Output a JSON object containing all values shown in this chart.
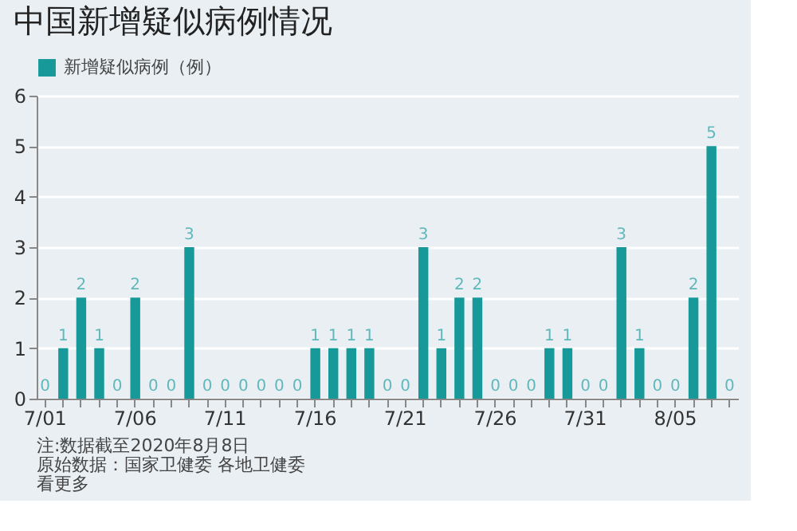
{
  "chart_data": {
    "type": "bar",
    "title": "中国新增疑似病例情况",
    "categories": [
      "7/01",
      null,
      null,
      null,
      null,
      "7/06",
      null,
      null,
      null,
      null,
      "7/11",
      null,
      null,
      null,
      null,
      "7/16",
      null,
      null,
      null,
      null,
      "7/21",
      null,
      null,
      null,
      null,
      "7/26",
      null,
      null,
      null,
      null,
      "7/31",
      null,
      null,
      null,
      null,
      "8/05",
      null,
      null,
      null
    ],
    "series": [
      {
        "name": "新增疑似病例（例）",
        "color": "#17999a",
        "values": [
          0,
          1,
          2,
          1,
          0,
          2,
          0,
          0,
          3,
          0,
          0,
          0,
          0,
          0,
          0,
          1,
          1,
          1,
          1,
          0,
          0,
          3,
          1,
          2,
          2,
          0,
          0,
          0,
          1,
          1,
          0,
          0,
          3,
          1,
          0,
          0,
          2,
          5,
          0
        ]
      }
    ],
    "ylim": [
      0,
      6
    ],
    "yticks": [
      0,
      1,
      2,
      3,
      4,
      5,
      6
    ],
    "grid": "y",
    "legend": "top left",
    "data_labels": true,
    "annotations": [
      "注:数据截至2020年8月8日",
      "原始数据：国家卫健委 各地卫健委",
      "看更多"
    ]
  }
}
